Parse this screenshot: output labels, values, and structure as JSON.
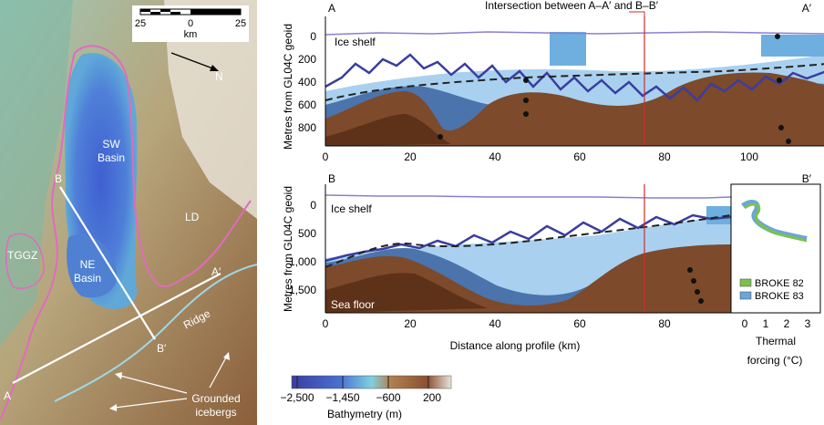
{
  "map": {
    "scale_left": "25",
    "scale_mid": "0",
    "scale_right": "25",
    "scale_unit": "km",
    "north": "N",
    "labels": {
      "sw_basin_1": "SW",
      "sw_basin_2": "Basin",
      "ne_basin_1": "NE",
      "ne_basin_2": "Basin",
      "tggz": "TGGZ",
      "ld": "LD",
      "ridge": "Ridge",
      "a": "A",
      "a_prime": "A′",
      "b": "B",
      "b_prime": "B′",
      "grounded_1": "Grounded",
      "grounded_2": "icebergs"
    }
  },
  "top_panel": {
    "left_label": "A",
    "right_label": "A′",
    "intersection": "Intersection between A–A′ and B–B′",
    "ylabel": "Metres from GL04C geoid",
    "yticks": [
      "0",
      "200",
      "400",
      "600",
      "800"
    ],
    "xticks": [
      "0",
      "20",
      "40",
      "60",
      "80",
      "100"
    ],
    "ice_shelf": "Ice shelf"
  },
  "bottom_panel": {
    "left_label": "B",
    "right_label": "B′",
    "ylabel": "Metres from GL04C geoid",
    "yticks": [
      "0",
      "500",
      "1,000",
      "1,500"
    ],
    "xticks": [
      "0",
      "20",
      "40",
      "60",
      "80"
    ],
    "xlabel": "Distance along profile (km)",
    "ice_shelf": "Ice shelf",
    "sea_floor": "Sea floor"
  },
  "inset": {
    "legend": [
      "BROKE 82",
      "BROKE 83"
    ],
    "legend_colors": [
      "#7cc24a",
      "#6aa6d8"
    ],
    "xticks": [
      "0",
      "1",
      "2",
      "3"
    ],
    "xlabel_1": "Thermal",
    "xlabel_2": "forcing (°C)"
  },
  "colorbar": {
    "ticks": [
      "−2,500",
      "−1,450",
      "−600",
      "200"
    ],
    "label": "Bathymetry (m)"
  }
}
